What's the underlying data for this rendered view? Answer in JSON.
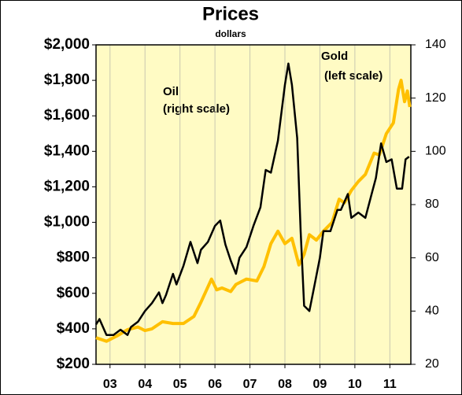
{
  "chart_data": {
    "type": "line",
    "title": "Prices",
    "subtitle": "dollars",
    "annotations": [
      "Oil",
      "(right scale)",
      "Gold",
      "(left scale)"
    ],
    "xlim": [
      2003,
      2012
    ],
    "xticks": [
      {
        "value": 2003.4,
        "label": "03"
      },
      {
        "value": 2004.4,
        "label": "04"
      },
      {
        "value": 2005.4,
        "label": "05"
      },
      {
        "value": 2006.4,
        "label": "06"
      },
      {
        "value": 2007.4,
        "label": "07"
      },
      {
        "value": 2008.4,
        "label": "08"
      },
      {
        "value": 2009.4,
        "label": "09"
      },
      {
        "value": 2010.4,
        "label": "10"
      },
      {
        "value": 2011.4,
        "label": "11"
      }
    ],
    "ylim": [
      200,
      2000
    ],
    "yticks": [
      {
        "value": 200,
        "label": "$200"
      },
      {
        "value": 400,
        "label": "$400"
      },
      {
        "value": 600,
        "label": "$600"
      },
      {
        "value": 800,
        "label": "$800"
      },
      {
        "value": 1000,
        "label": "$1,000"
      },
      {
        "value": 1200,
        "label": "$1,200"
      },
      {
        "value": 1400,
        "label": "$1,400"
      },
      {
        "value": 1600,
        "label": "$1,600"
      },
      {
        "value": 1800,
        "label": "$1,800"
      },
      {
        "value": 2000,
        "label": "$2,000"
      }
    ],
    "y2lim": [
      20,
      140
    ],
    "y2ticks": [
      20,
      40,
      60,
      80,
      100,
      120,
      140
    ],
    "grid": true,
    "background": "#fffbc4",
    "series": [
      {
        "name": "Gold",
        "color": "#ffc000",
        "axis": "y",
        "x": [
          2003.0,
          2003.3,
          2003.6,
          2003.9,
          2004.2,
          2004.4,
          2004.6,
          2004.9,
          2005.2,
          2005.5,
          2005.8,
          2006.0,
          2006.3,
          2006.45,
          2006.6,
          2006.85,
          2007.0,
          2007.3,
          2007.6,
          2007.8,
          2008.0,
          2008.2,
          2008.4,
          2008.6,
          2008.8,
          2008.95,
          2009.1,
          2009.3,
          2009.5,
          2009.75,
          2009.95,
          2010.1,
          2010.3,
          2010.5,
          2010.7,
          2010.95,
          2011.1,
          2011.3,
          2011.5,
          2011.65,
          2011.72,
          2011.82,
          2011.9,
          2011.97
        ],
        "values": [
          350,
          330,
          360,
          395,
          410,
          390,
          400,
          440,
          430,
          430,
          470,
          550,
          680,
          620,
          630,
          610,
          650,
          680,
          670,
          750,
          880,
          950,
          880,
          910,
          760,
          820,
          930,
          900,
          950,
          1000,
          1130,
          1110,
          1180,
          1230,
          1270,
          1390,
          1380,
          1500,
          1560,
          1750,
          1800,
          1680,
          1740,
          1650
        ]
      },
      {
        "name": "Oil",
        "color": "#000000",
        "axis": "y2",
        "x": [
          2003.0,
          2003.1,
          2003.3,
          2003.5,
          2003.7,
          2003.9,
          2004.0,
          2004.2,
          2004.4,
          2004.6,
          2004.8,
          2004.9,
          2005.0,
          2005.2,
          2005.3,
          2005.5,
          2005.7,
          2005.8,
          2005.9,
          2006.0,
          2006.2,
          2006.4,
          2006.55,
          2006.7,
          2006.85,
          2007.0,
          2007.1,
          2007.3,
          2007.5,
          2007.7,
          2007.85,
          2008.0,
          2008.2,
          2008.4,
          2008.5,
          2008.6,
          2008.75,
          2008.85,
          2008.95,
          2009.1,
          2009.25,
          2009.4,
          2009.5,
          2009.7,
          2009.9,
          2010.0,
          2010.2,
          2010.3,
          2010.5,
          2010.7,
          2010.9,
          2011.0,
          2011.15,
          2011.3,
          2011.45,
          2011.6,
          2011.75,
          2011.85,
          2011.95
        ],
        "values": [
          35,
          37,
          31,
          31,
          33,
          31,
          34,
          36,
          40,
          43,
          47,
          43,
          46,
          54,
          50,
          57,
          66,
          62,
          58,
          63,
          66,
          72,
          74,
          65,
          59,
          54,
          60,
          64,
          72,
          79,
          93,
          92,
          104,
          125,
          133,
          125,
          105,
          70,
          42,
          40,
          50,
          60,
          70,
          70,
          78,
          78,
          84,
          75,
          77,
          75,
          85,
          90,
          103,
          96,
          97,
          86,
          86,
          97,
          98
        ]
      }
    ]
  }
}
